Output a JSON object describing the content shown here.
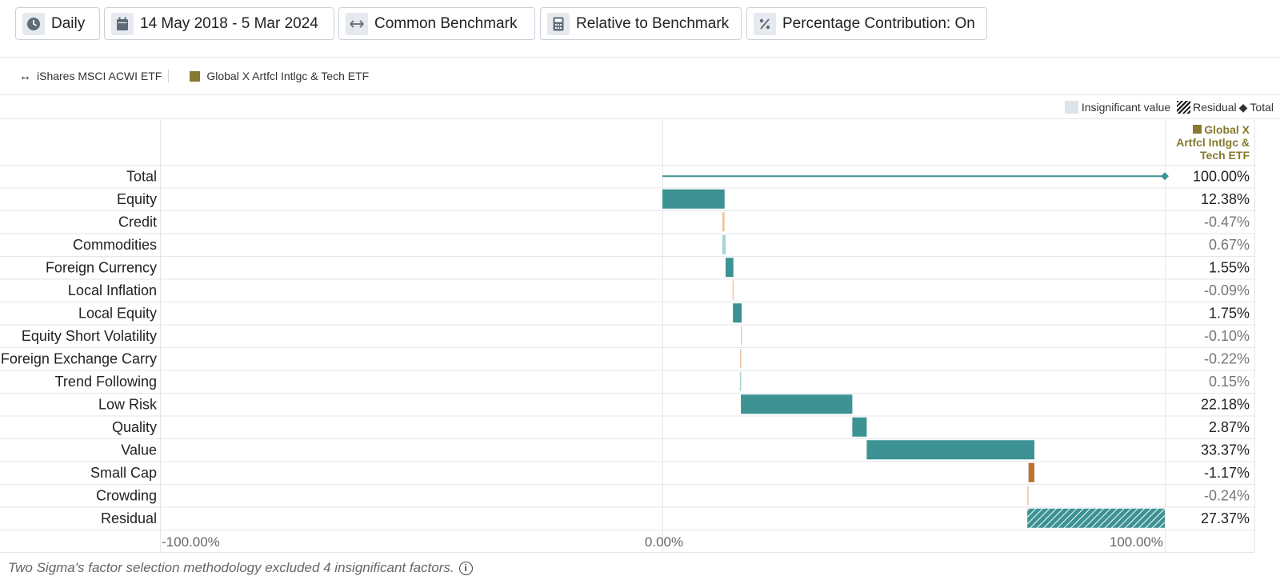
{
  "toolbar": {
    "buttons": [
      {
        "icon": "clock-icon",
        "label": "Daily"
      },
      {
        "icon": "calendar-icon",
        "label": "14 May 2018 - 5 Mar 2024"
      },
      {
        "icon": "arrows-icon",
        "label": "Common Benchmark"
      },
      {
        "icon": "calculator-icon",
        "label": "Relative to Benchmark"
      },
      {
        "icon": "percent-icon",
        "label": "Percentage Contribution: On"
      }
    ]
  },
  "legend": {
    "benchmark": "iShares MSCI ACWI ETF",
    "portfolio": "Global X Artfcl Intlgc & Tech ETF"
  },
  "key_legend": {
    "insignificant": "Insignificant value",
    "residual": "Residual",
    "total": "Total"
  },
  "column_header": {
    "line1": "Global X",
    "line2": "Artfcl Intlgc &",
    "line3": "Tech ETF"
  },
  "footnote": "Two Sigma's factor selection methodology excluded 4 insignificant factors.",
  "colors": {
    "positive": "#3d9293",
    "negative": "#b87333",
    "insignificant_positive": "#a9d4d4",
    "insignificant_negative": "#ecc7a5",
    "portfolio": "#857a2d"
  },
  "chart_data": {
    "type": "bar",
    "subtype": "waterfall",
    "xlim": [
      -100,
      100
    ],
    "x_ticks": [
      "-100.00%",
      "0.00%",
      "100.00%"
    ],
    "rows": [
      {
        "name": "Total",
        "value": 100.0,
        "label": "100.00%",
        "kind": "total"
      },
      {
        "name": "Equity",
        "value": 12.38,
        "label": "12.38%",
        "kind": "factor",
        "significant": true
      },
      {
        "name": "Credit",
        "value": -0.47,
        "label": "-0.47%",
        "kind": "factor",
        "significant": false
      },
      {
        "name": "Commodities",
        "value": 0.67,
        "label": "0.67%",
        "kind": "factor",
        "significant": false
      },
      {
        "name": "Foreign Currency",
        "value": 1.55,
        "label": "1.55%",
        "kind": "factor",
        "significant": true
      },
      {
        "name": "Local Inflation",
        "value": -0.09,
        "label": "-0.09%",
        "kind": "factor",
        "significant": false
      },
      {
        "name": "Local Equity",
        "value": 1.75,
        "label": "1.75%",
        "kind": "factor",
        "significant": true
      },
      {
        "name": "Equity Short Volatility",
        "value": -0.1,
        "label": "-0.10%",
        "kind": "factor",
        "significant": false
      },
      {
        "name": "Foreign Exchange Carry",
        "value": -0.22,
        "label": "-0.22%",
        "kind": "factor",
        "significant": false
      },
      {
        "name": "Trend Following",
        "value": 0.15,
        "label": "0.15%",
        "kind": "factor",
        "significant": false
      },
      {
        "name": "Low Risk",
        "value": 22.18,
        "label": "22.18%",
        "kind": "factor",
        "significant": true
      },
      {
        "name": "Quality",
        "value": 2.87,
        "label": "2.87%",
        "kind": "factor",
        "significant": true
      },
      {
        "name": "Value",
        "value": 33.37,
        "label": "33.37%",
        "kind": "factor",
        "significant": true
      },
      {
        "name": "Small Cap",
        "value": -1.17,
        "label": "-1.17%",
        "kind": "factor",
        "significant": true
      },
      {
        "name": "Crowding",
        "value": -0.24,
        "label": "-0.24%",
        "kind": "factor",
        "significant": false
      },
      {
        "name": "Residual",
        "value": 27.37,
        "label": "27.37%",
        "kind": "residual"
      }
    ]
  }
}
